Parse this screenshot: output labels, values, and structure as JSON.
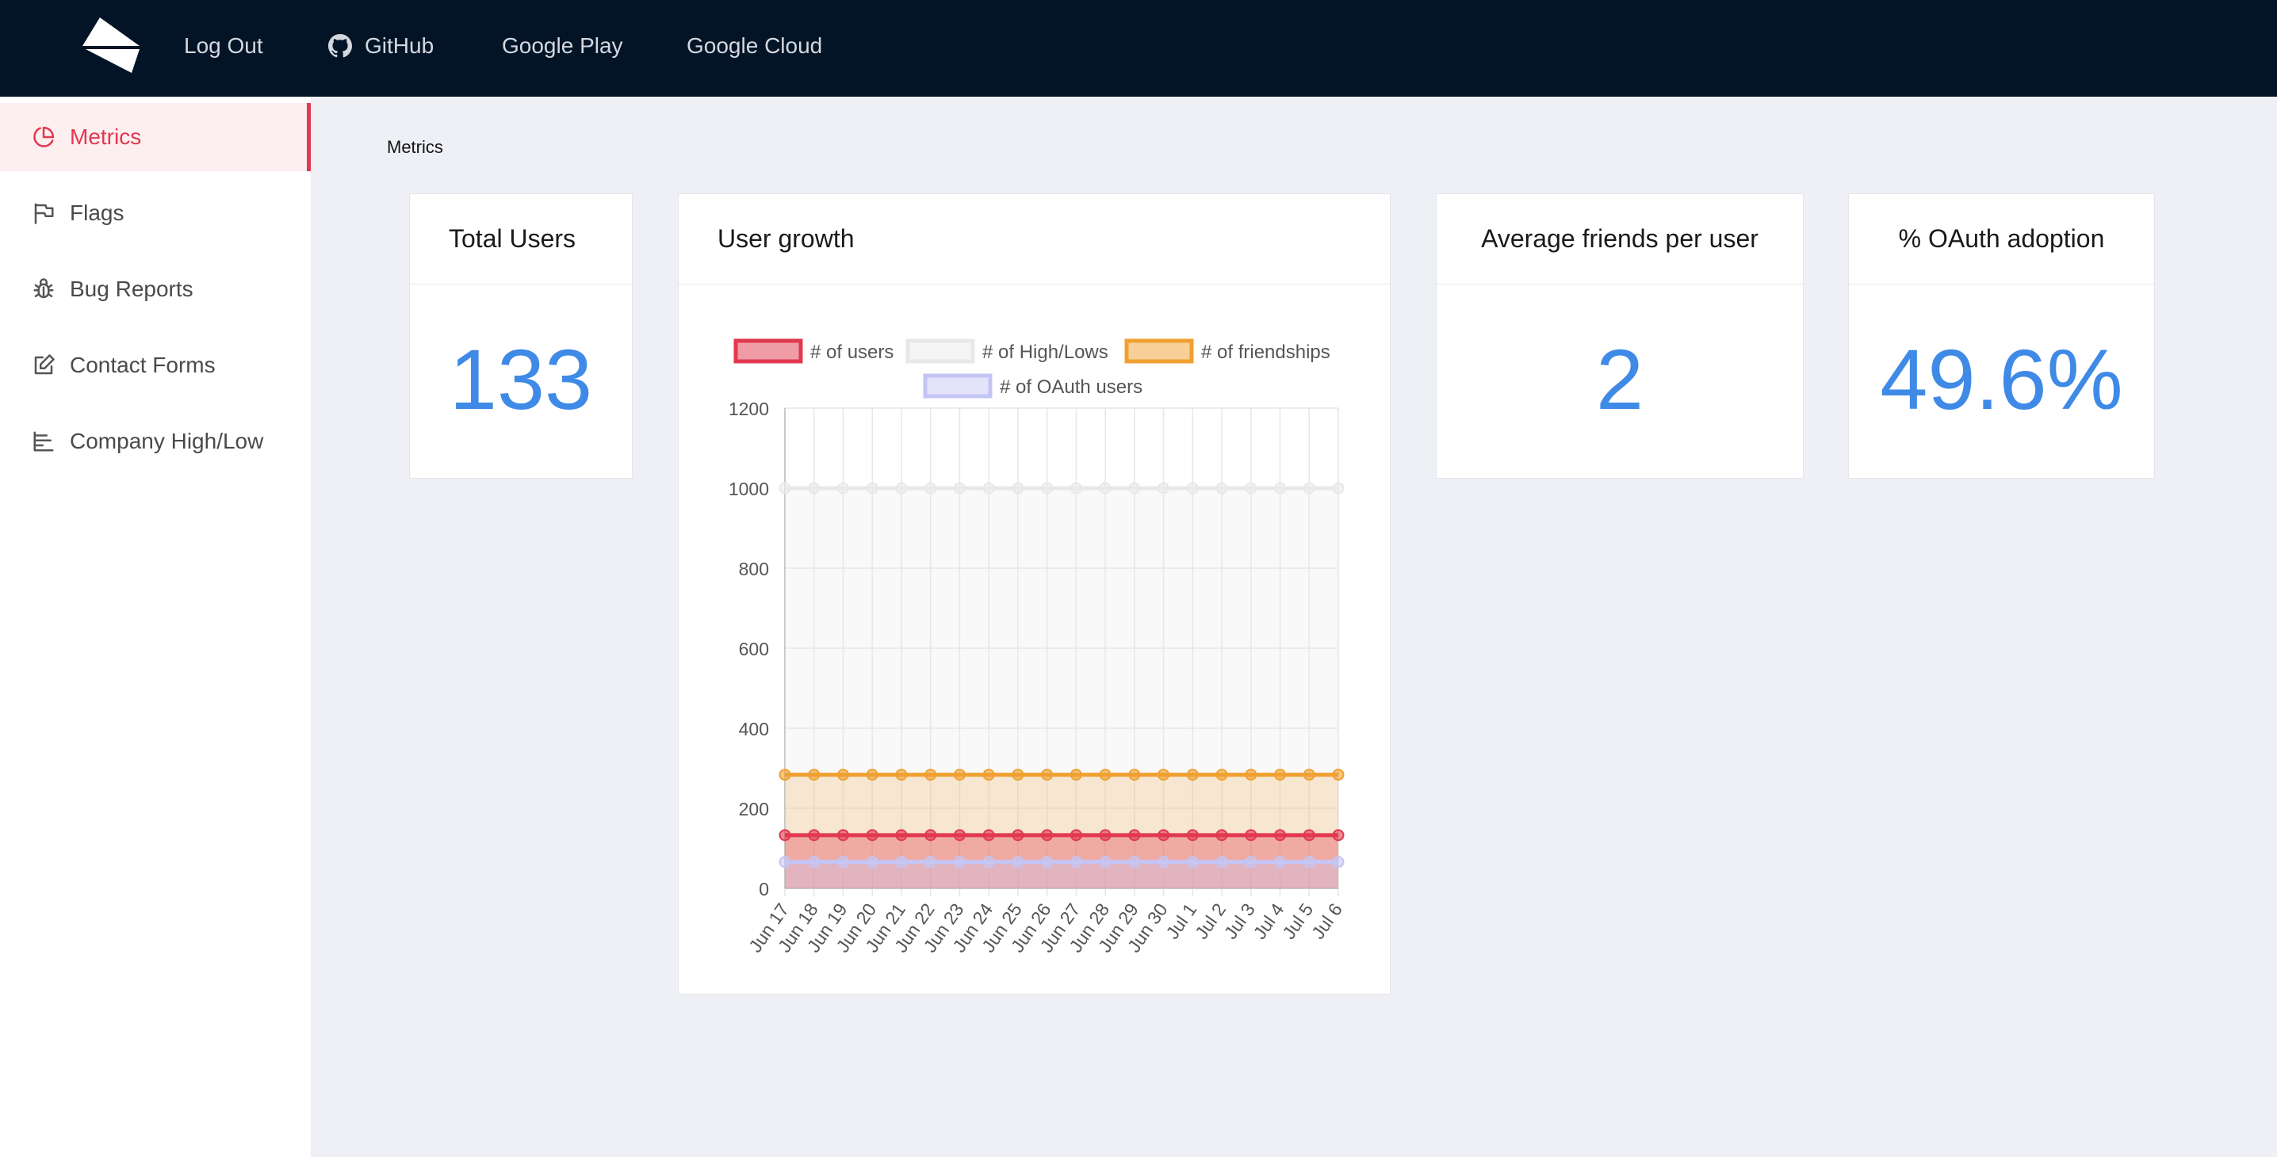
{
  "topnav": {
    "items": [
      {
        "label": "Log Out"
      },
      {
        "label": "GitHub",
        "icon": "github-icon"
      },
      {
        "label": "Google Play"
      },
      {
        "label": "Google Cloud"
      }
    ]
  },
  "sidebar": {
    "items": [
      {
        "label": "Metrics",
        "icon": "pie-chart-icon",
        "active": true
      },
      {
        "label": "Flags",
        "icon": "flag-icon"
      },
      {
        "label": "Bug Reports",
        "icon": "bug-icon"
      },
      {
        "label": "Contact Forms",
        "icon": "edit-icon"
      },
      {
        "label": "Company High/Low",
        "icon": "bars-icon"
      }
    ]
  },
  "page": {
    "title": "Metrics"
  },
  "cards": {
    "total_users": {
      "title": "Total Users",
      "value": "133"
    },
    "user_growth": {
      "title": "User growth"
    },
    "avg_friends": {
      "title": "Average friends per user",
      "value": "2"
    },
    "oauth": {
      "title": "% OAuth adoption",
      "value": "49.6%"
    }
  },
  "colors": {
    "accent": "#e1394f",
    "value_blue": "#3f8ae6",
    "topbar": "#031427",
    "users": "#e1394f",
    "highlows": "#e8e8e8",
    "friendships": "#f0a030",
    "oauth_users": "#c4c4f5"
  },
  "chart_data": {
    "type": "line",
    "x": [
      "Jun 17",
      "Jun 18",
      "Jun 19",
      "Jun 20",
      "Jun 21",
      "Jun 22",
      "Jun 23",
      "Jun 24",
      "Jun 25",
      "Jun 26",
      "Jun 27",
      "Jun 28",
      "Jun 29",
      "Jun 30",
      "Jul 1",
      "Jul 2",
      "Jul 3",
      "Jul 4",
      "Jul 5",
      "Jul 6"
    ],
    "series": [
      {
        "name": "# of users",
        "values": [
          133,
          133,
          133,
          133,
          133,
          133,
          133,
          133,
          133,
          133,
          133,
          133,
          133,
          133,
          133,
          133,
          133,
          133,
          133,
          133
        ],
        "color": "#e1394f",
        "fill": "rgba(225,57,79,0.35)"
      },
      {
        "name": "# of High/Lows",
        "values": [
          1000,
          1000,
          1000,
          1000,
          1000,
          1000,
          1000,
          1000,
          1000,
          1000,
          1000,
          1000,
          1000,
          1000,
          1000,
          1000,
          1000,
          1000,
          1000,
          1000
        ],
        "color": "#e8e8e8",
        "fill": "rgba(235,235,235,0.3)"
      },
      {
        "name": "# of friendships",
        "values": [
          284,
          284,
          284,
          284,
          284,
          284,
          284,
          284,
          284,
          284,
          284,
          284,
          284,
          284,
          284,
          284,
          284,
          284,
          284,
          284
        ],
        "color": "#f0a030",
        "fill": "rgba(240,160,48,0.2)"
      },
      {
        "name": "# of OAuth users",
        "values": [
          66,
          66,
          66,
          66,
          66,
          66,
          66,
          66,
          66,
          66,
          66,
          66,
          66,
          66,
          66,
          66,
          66,
          66,
          66,
          66
        ],
        "color": "#c4c4f5",
        "fill": "rgba(200,200,245,0.35)"
      }
    ],
    "yticks": [
      0,
      200,
      400,
      600,
      800,
      1000,
      1200
    ],
    "ylim": [
      0,
      1200
    ],
    "grid": true,
    "legend": "top"
  }
}
